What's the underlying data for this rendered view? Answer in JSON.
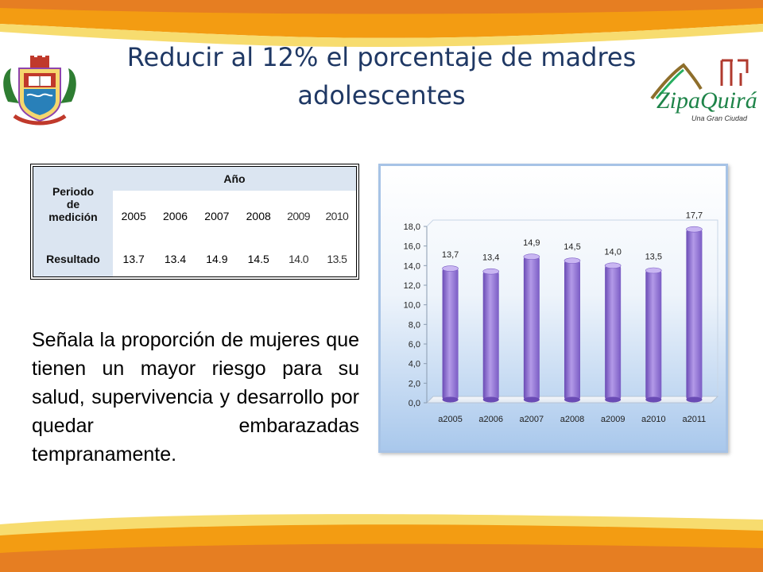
{
  "title": {
    "line1": "Reducir al 12%  el porcentaje de madres",
    "line2": "adolescentes"
  },
  "logo": {
    "name": "ZipaQuirá",
    "tagline": "Una Gran Ciudad"
  },
  "table": {
    "period_header_line1": "Periodo",
    "period_header_line2": "de",
    "period_header_line3": "medición",
    "year_header": "Año",
    "years": [
      "2005",
      "2006",
      "2007",
      "2008",
      "2009",
      "2010"
    ],
    "result_label": "Resultado",
    "results": [
      "13.7",
      "13.4",
      "14.9",
      "14.5",
      "14.0",
      "13.5"
    ]
  },
  "description": "Señala la proporción de mujeres que tienen un mayor riesgo para su salud, supervivencia y desarrollo por quedar embarazadas tempranamente.",
  "colors": {
    "title": "#1f3864",
    "bar": "#9d7fdc",
    "bar_dark": "#6a4bb5",
    "band_orange": "#f39c12",
    "band_yellow": "#f7dc6f",
    "table_header": "#dbe5f1"
  },
  "chart_data": {
    "type": "bar",
    "categories": [
      "a2005",
      "a2006",
      "a2007",
      "a2008",
      "a2009",
      "a2010",
      "a2011"
    ],
    "values": [
      13.7,
      13.4,
      14.9,
      14.5,
      14.0,
      13.5,
      17.7
    ],
    "data_labels": [
      "13,7",
      "13,4",
      "14,9",
      "14,5",
      "14,0",
      "13,5",
      "17,7"
    ],
    "y_ticks": [
      "0,0",
      "2,0",
      "4,0",
      "6,0",
      "8,0",
      "10,0",
      "12,0",
      "14,0",
      "16,0",
      "18,0"
    ],
    "ylim": [
      0,
      18
    ],
    "grid": false,
    "legend": "none"
  }
}
